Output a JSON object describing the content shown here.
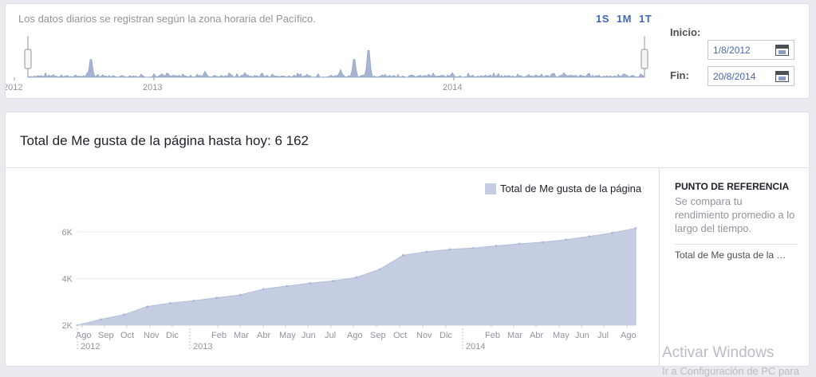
{
  "range": {
    "note": "Los datos diarios se registran según la zona horaria del Pacífico.",
    "buttons": [
      "1S",
      "1M",
      "1T"
    ],
    "start_label": "Inicio:",
    "start_value": "1/8/2012",
    "end_label": "Fin:",
    "end_value": "20/8/2014",
    "timeline_ticks": [
      "2012",
      "2013",
      "2014"
    ]
  },
  "main": {
    "title": "Total de Me gusta de la página hasta hoy: 6 162",
    "legend_label": "Total de Me gusta de la página",
    "benchmark": {
      "heading": "PUNTO DE REFERENCIA",
      "description": "Se compara tu rendimiento promedio a lo largo del tiempo.",
      "item": "Total de Me gusta de la …"
    }
  },
  "chart_data": {
    "type": "area",
    "series": [
      {
        "name": "Total de Me gusta de la página",
        "color": "#c4cde1"
      }
    ],
    "x": [
      "2012-08",
      "2012-09",
      "2012-10",
      "2012-11",
      "2012-12",
      "2013-01",
      "2013-02",
      "2013-03",
      "2013-04",
      "2013-05",
      "2013-06",
      "2013-07",
      "2013-08",
      "2013-09",
      "2013-10",
      "2013-11",
      "2013-12",
      "2014-01",
      "2014-02",
      "2014-03",
      "2014-04",
      "2014-05",
      "2014-06",
      "2014-07",
      "2014-08"
    ],
    "y": [
      2000,
      2250,
      2450,
      2800,
      2950,
      3050,
      3180,
      3300,
      3550,
      3680,
      3800,
      3900,
      4050,
      4400,
      5000,
      5150,
      5250,
      5310,
      5400,
      5490,
      5560,
      5670,
      5810,
      5960,
      6162
    ],
    "xtick_labels": [
      "Ago",
      "Sep",
      "Oct",
      "Nov",
      "Dic",
      "Feb",
      "Mar",
      "Abr",
      "May",
      "Jun",
      "Jul",
      "Ago",
      "Sep",
      "Oct",
      "Nov",
      "Dic",
      "Feb",
      "Mar",
      "Abr",
      "May",
      "Jun",
      "Jul",
      "Ago"
    ],
    "year_labels": [
      "2012",
      "2013",
      "2014"
    ],
    "ytick_labels": [
      "2K",
      "4K",
      "6K"
    ],
    "ylim": [
      2000,
      6500
    ],
    "grid": true,
    "legend": "top-right"
  },
  "watermark": {
    "line1": "Activar Windows",
    "line2": "Ir a Configuración de PC para"
  }
}
